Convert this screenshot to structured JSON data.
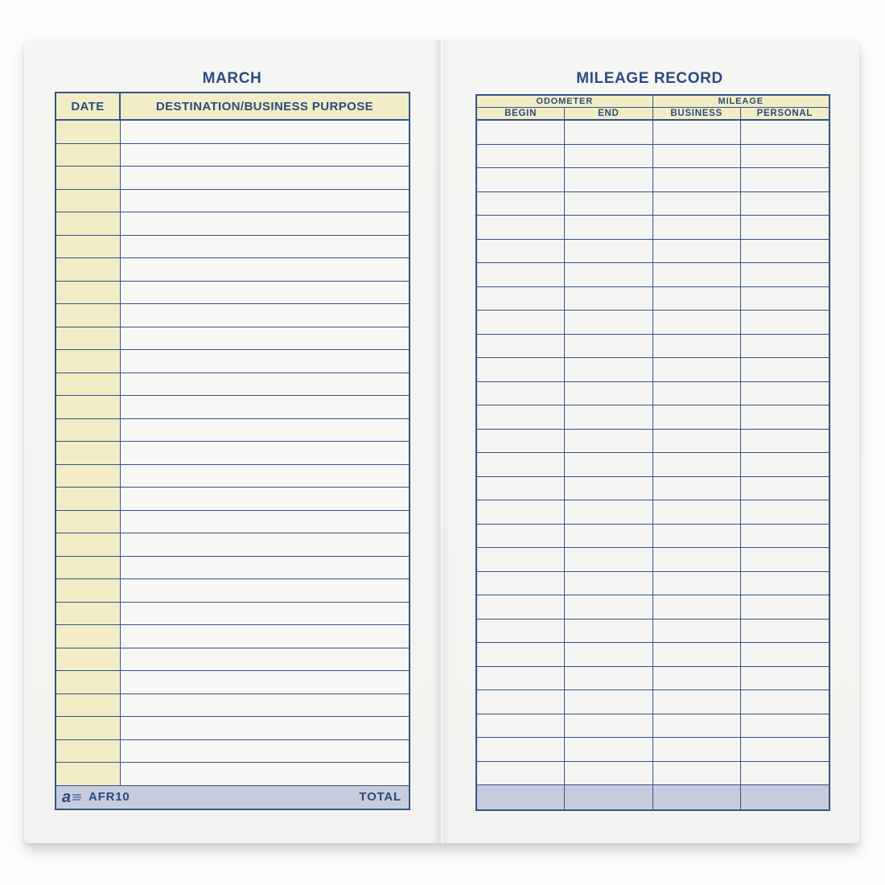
{
  "book": {
    "left_page": {
      "title": "MARCH",
      "table": {
        "columns": [
          {
            "label": "DATE"
          },
          {
            "label": "DESTINATION/BUSINESS PURPOSE"
          }
        ],
        "row_count": 29,
        "rows_empty": true
      },
      "footer": {
        "logo_icon": "adams-a-logo",
        "product_code": "AFR10",
        "total_label": "TOTAL"
      }
    },
    "right_page": {
      "title": "MILEAGE RECORD",
      "table": {
        "column_groups": [
          {
            "label": "ODOMETER",
            "columns": [
              "BEGIN",
              "END"
            ]
          },
          {
            "label": "MILEAGE",
            "columns": [
              "BUSINESS",
              "PERSONAL"
            ]
          }
        ],
        "row_count": 28,
        "rows_empty": true,
        "total_row": {
          "shaded": true,
          "label": ""
        }
      }
    },
    "colors": {
      "grid_line_navy": "#33538c",
      "text_navy": "#2b4c80",
      "header_cream": "#f2edc6",
      "total_row_lavender": "#c7ccdd",
      "page_background": "#f4f5f2",
      "row_white": "#f7f8f5"
    }
  }
}
